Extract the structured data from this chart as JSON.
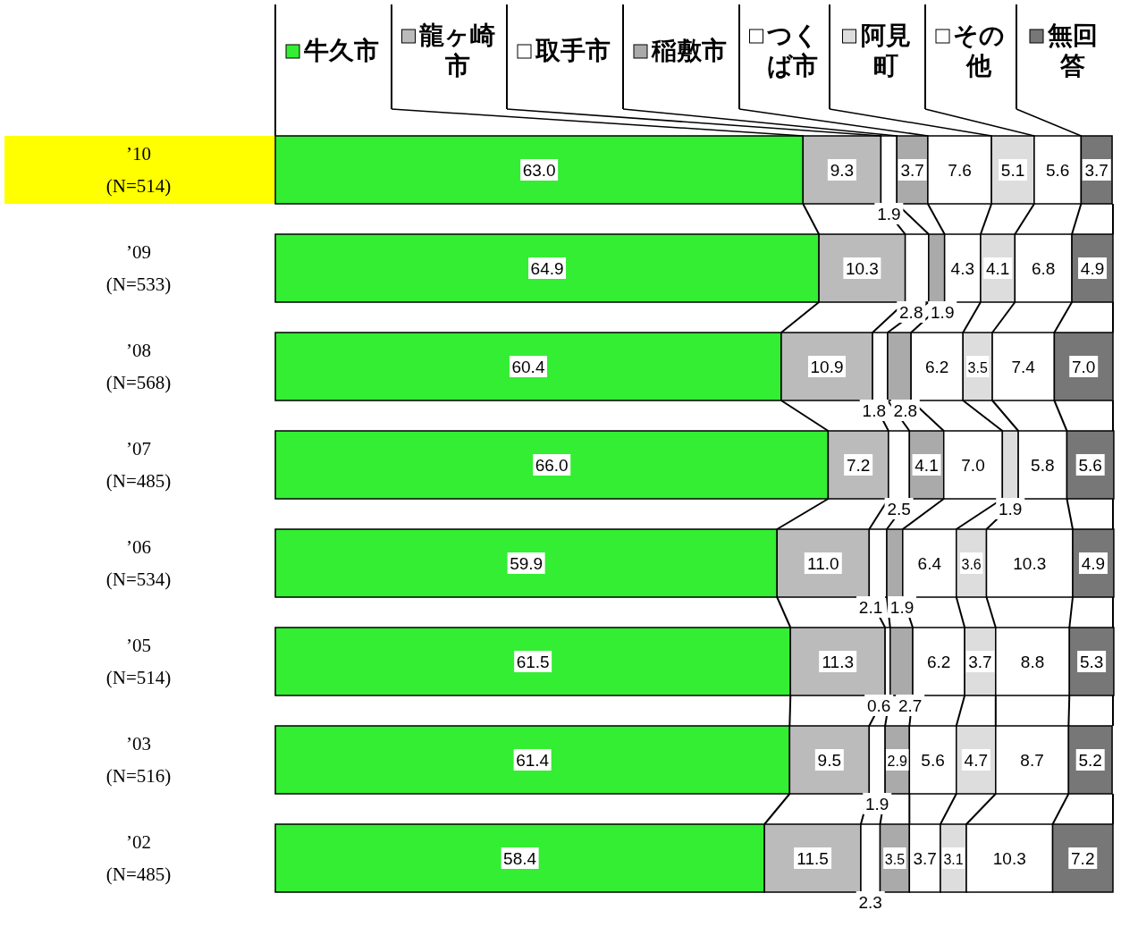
{
  "chart_data": {
    "type": "bar",
    "orientation": "horizontal",
    "stacked": true,
    "legend": "top",
    "tick_labels": "y",
    "xlim": [
      0,
      100
    ],
    "categories": [
      "’10 (N=514)",
      "’09 (N=533)",
      "’08 (N=568)",
      "’07 (N=485)",
      "’06 (N=534)",
      "’05 (N=514)",
      "’03 (N=516)",
      "’02 (N=485)"
    ],
    "series": [
      {
        "name": "牛久市",
        "color": "#33ee33",
        "values": [
          63.0,
          64.9,
          60.4,
          66.0,
          59.9,
          61.5,
          61.4,
          58.4
        ],
        "value_labels": [
          "63.0",
          "64.9",
          "60.4",
          "66.0",
          "59.9",
          "61.5",
          "61.4",
          "58.4"
        ]
      },
      {
        "name": "龍ヶ崎市",
        "color": "#bbbbbb",
        "values": [
          9.3,
          10.3,
          10.9,
          7.2,
          11.0,
          11.3,
          9.5,
          11.5
        ],
        "value_labels": [
          "9.3",
          "10.3",
          "10.9",
          "7.2",
          "11.0",
          "11.3",
          "9.5",
          "11.5"
        ]
      },
      {
        "name": "取手市",
        "color": "#ffffff",
        "values": [
          1.9,
          2.8,
          1.8,
          2.5,
          2.1,
          0.6,
          1.9,
          2.3
        ],
        "value_labels": [
          "1.9",
          "2.8",
          "1.8",
          "2.5",
          "2.1",
          "0.6",
          "1.9",
          "2.3"
        ]
      },
      {
        "name": "稲敷市",
        "color": "#aaaaaa",
        "values": [
          3.7,
          1.9,
          2.8,
          4.1,
          1.9,
          2.7,
          2.9,
          3.5
        ],
        "value_labels": [
          "3.7",
          "1.9",
          "2.8",
          "4.1",
          "1.9",
          "2.7",
          "2.9",
          "3.5"
        ]
      },
      {
        "name": "つくば市",
        "color": "#ffffff",
        "values": [
          7.6,
          4.3,
          6.2,
          7.0,
          6.4,
          6.2,
          5.6,
          3.7
        ],
        "value_labels": [
          "7.6",
          "4.3",
          "6.2",
          "7.0",
          "6.4",
          "6.2",
          "5.6",
          "3.7"
        ]
      },
      {
        "name": "阿見町",
        "color": "#dddddd",
        "values": [
          5.1,
          4.1,
          3.5,
          1.9,
          3.6,
          3.7,
          4.7,
          3.1
        ],
        "value_labels": [
          "5.1",
          "4.1",
          "3.5",
          "1.9",
          "3.6",
          "3.7",
          "4.7",
          "3.1"
        ]
      },
      {
        "name": "その他",
        "color": "#ffffff",
        "values": [
          5.6,
          6.8,
          7.4,
          5.8,
          10.3,
          8.8,
          8.7,
          10.3
        ],
        "value_labels": [
          "5.6",
          "6.8",
          "7.4",
          "5.8",
          "10.3",
          "8.8",
          "8.7",
          "10.3"
        ]
      },
      {
        "name": "無回答",
        "color": "#777777",
        "values": [
          3.7,
          4.9,
          7.0,
          5.6,
          4.9,
          5.3,
          5.2,
          7.2
        ],
        "value_labels": [
          "3.7",
          "4.9",
          "7.0",
          "5.6",
          "4.9",
          "5.3",
          "5.2",
          "7.2"
        ]
      }
    ]
  }
}
